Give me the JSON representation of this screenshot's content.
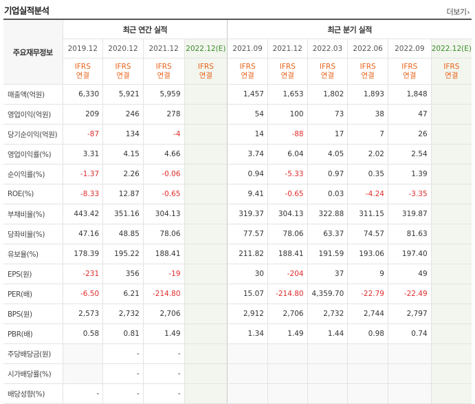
{
  "header": {
    "title": "기업실적분석",
    "more_label": "더보기",
    "more_icon": "chevron-right-icon"
  },
  "table": {
    "corner_label": "주요재무정보",
    "annual_group": "최근 연간 실적",
    "quarter_group": "최근 분기 실적",
    "periods": [
      {
        "label": "2019.12",
        "type": "IFRS",
        "basis": "연결",
        "estimate": false
      },
      {
        "label": "2020.12",
        "type": "IFRS",
        "basis": "연결",
        "estimate": false
      },
      {
        "label": "2021.12",
        "type": "IFRS",
        "basis": "연결",
        "estimate": false
      },
      {
        "label": "2022.12(E)",
        "type": "IFRS",
        "basis": "연결",
        "estimate": true
      },
      {
        "label": "2021.09",
        "type": "IFRS",
        "basis": "연결",
        "estimate": false
      },
      {
        "label": "2021.12",
        "type": "IFRS",
        "basis": "연결",
        "estimate": false
      },
      {
        "label": "2022.03",
        "type": "IFRS",
        "basis": "연결",
        "estimate": false
      },
      {
        "label": "2022.06",
        "type": "IFRS",
        "basis": "연결",
        "estimate": false
      },
      {
        "label": "2022.09",
        "type": "IFRS",
        "basis": "연결",
        "estimate": false
      },
      {
        "label": "2022.12(E)",
        "type": "IFRS",
        "basis": "연결",
        "estimate": true
      }
    ],
    "rows": [
      {
        "label": "매출액(억원)",
        "values": [
          "6,330",
          "5,921",
          "5,959",
          "",
          "1,457",
          "1,653",
          "1,802",
          "1,893",
          "1,848",
          ""
        ]
      },
      {
        "label": "영업이익(억원)",
        "values": [
          "209",
          "246",
          "278",
          "",
          "54",
          "100",
          "73",
          "38",
          "47",
          ""
        ]
      },
      {
        "label": "당기순이익(억원)",
        "values": [
          "-87",
          "134",
          "-4",
          "",
          "14",
          "-88",
          "17",
          "7",
          "26",
          ""
        ]
      },
      {
        "label": "영업이익률(%)",
        "values": [
          "3.31",
          "4.15",
          "4.66",
          "",
          "3.74",
          "6.04",
          "4.05",
          "2.02",
          "2.54",
          ""
        ]
      },
      {
        "label": "순이익률(%)",
        "values": [
          "-1.37",
          "2.26",
          "-0.06",
          "",
          "0.94",
          "-5.33",
          "0.97",
          "0.35",
          "1.39",
          ""
        ]
      },
      {
        "label": "ROE(%)",
        "values": [
          "-8.33",
          "12.87",
          "-0.65",
          "",
          "9.41",
          "-0.65",
          "0.03",
          "-4.24",
          "-3.35",
          ""
        ]
      },
      {
        "label": "부채비율(%)",
        "values": [
          "443.42",
          "351.16",
          "304.13",
          "",
          "319.37",
          "304.13",
          "322.88",
          "311.15",
          "319.87",
          ""
        ]
      },
      {
        "label": "당좌비율(%)",
        "values": [
          "47.16",
          "48.85",
          "78.06",
          "",
          "77.57",
          "78.06",
          "63.37",
          "74.57",
          "81.63",
          ""
        ]
      },
      {
        "label": "유보율(%)",
        "values": [
          "178.39",
          "195.22",
          "188.41",
          "",
          "211.82",
          "188.41",
          "191.59",
          "193.06",
          "197.40",
          ""
        ]
      },
      {
        "label": "EPS(원)",
        "values": [
          "-231",
          "356",
          "-19",
          "",
          "30",
          "-204",
          "37",
          "9",
          "49",
          ""
        ]
      },
      {
        "label": "PER(배)",
        "values": [
          "-6.50",
          "6.21",
          "-214.80",
          "",
          "15.07",
          "-214.80",
          "4,359.70",
          "-22.79",
          "-22.49",
          ""
        ]
      },
      {
        "label": "BPS(원)",
        "values": [
          "2,573",
          "2,732",
          "2,706",
          "",
          "2,912",
          "2,706",
          "2,732",
          "2,744",
          "2,797",
          ""
        ]
      },
      {
        "label": "PBR(배)",
        "values": [
          "0.58",
          "0.81",
          "1.49",
          "",
          "1.34",
          "1.49",
          "1.44",
          "0.98",
          "0.74",
          ""
        ]
      },
      {
        "label": "주당배당금(원)",
        "values": [
          "",
          "-",
          "-",
          "",
          "",
          "",
          "",
          "",
          "",
          ""
        ]
      },
      {
        "label": "시가배당률(%)",
        "values": [
          "",
          "-",
          "-",
          "",
          "",
          "",
          "",
          "",
          "",
          ""
        ]
      },
      {
        "label": "배당성향(%)",
        "values": [
          "-",
          "-",
          "-",
          "",
          "",
          "",
          "",
          "",
          "",
          ""
        ]
      }
    ]
  }
}
